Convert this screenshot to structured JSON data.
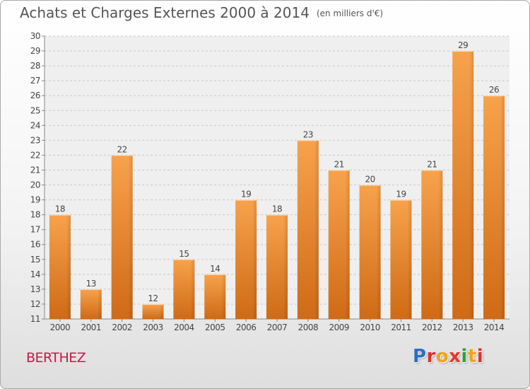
{
  "title": {
    "main": "Achats et Charges Externes 2000 à 2014",
    "unit": "(en milliers d'€)"
  },
  "place": "BERTHEZ",
  "logo": {
    "text": "Proxiti",
    "letter_colors": [
      "#2c6fbf",
      "#d9322c",
      "#f2a21a",
      "#e23a2a",
      "#2aa43a",
      "#f2a21a",
      "#d9322c"
    ]
  },
  "chart_data": {
    "type": "bar",
    "categories": [
      "2000",
      "2001",
      "2002",
      "2003",
      "2004",
      "2005",
      "2006",
      "2007",
      "2008",
      "2009",
      "2010",
      "2011",
      "2012",
      "2013",
      "2014"
    ],
    "values": [
      18,
      13,
      22,
      12,
      15,
      14,
      19,
      18,
      23,
      21,
      20,
      19,
      21,
      29,
      26
    ],
    "ylim": [
      11,
      30
    ],
    "yticks": [
      11,
      12,
      13,
      14,
      15,
      16,
      17,
      18,
      19,
      20,
      21,
      22,
      23,
      24,
      25,
      26,
      27,
      28,
      29,
      30
    ],
    "grid": true,
    "bar_color": "#f0932f",
    "data_labels": true
  }
}
